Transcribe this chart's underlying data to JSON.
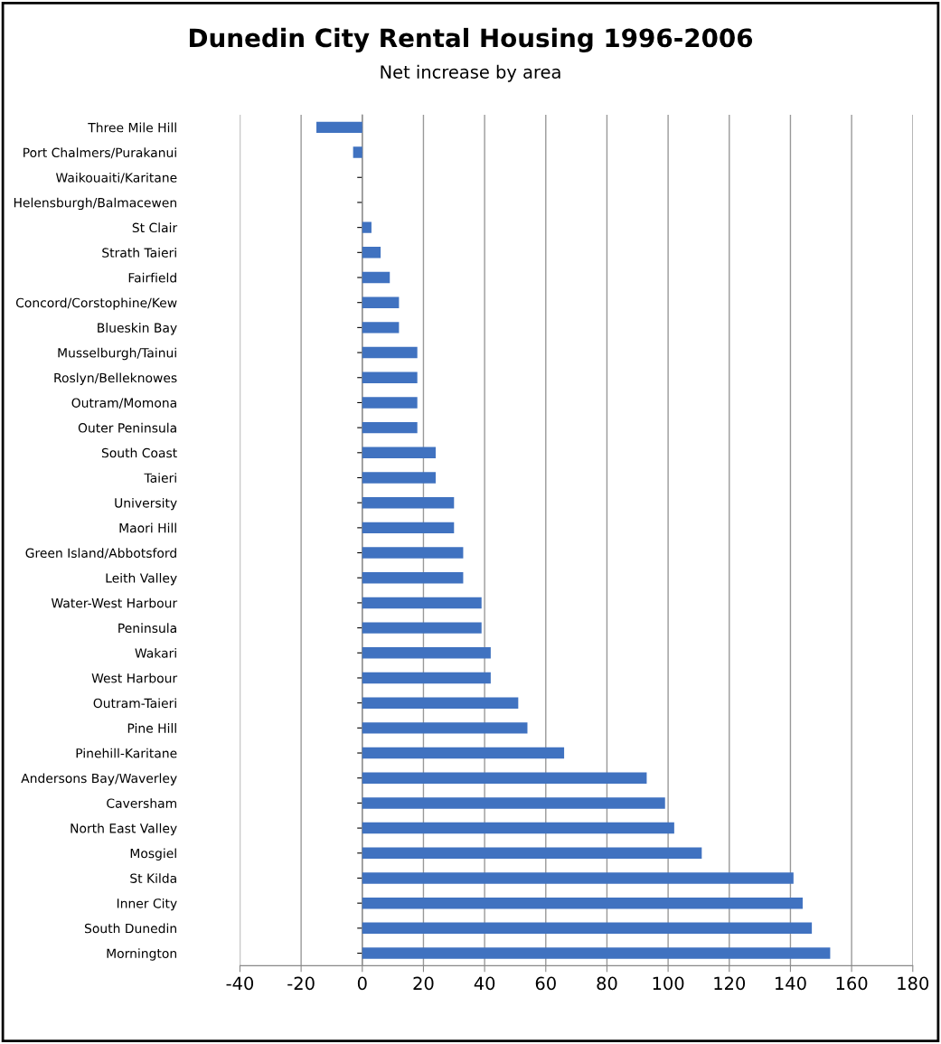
{
  "chart_data": {
    "type": "bar",
    "orientation": "horizontal",
    "title": "Dunedin City Rental Housing 1996-2006",
    "subtitle": "Net increase by area",
    "categories": [
      "Three Mile Hill",
      "Port Chalmers/Purakanui",
      "Waikouaiti/Karitane",
      "Helensburgh/Balmacewen",
      "St Clair",
      "Strath Taieri",
      "Fairfield",
      "Concord/Corstophine/Kew",
      "Blueskin Bay",
      "Musselburgh/Tainui",
      "Roslyn/Belleknowes",
      "Outram/Momona",
      "Outer Peninsula",
      "South Coast",
      "Taieri",
      "University",
      "Maori Hill",
      "Green Island/Abbotsford",
      "Leith Valley",
      "Water-West Harbour",
      "Peninsula",
      "Wakari",
      "West Harbour",
      "Outram-Taieri",
      "Pine Hill",
      "Pinehill-Karitane",
      "Andersons Bay/Waverley",
      "Caversham",
      "North East Valley",
      "Mosgiel",
      "St Kilda",
      "Inner City",
      "South Dunedin",
      "Mornington"
    ],
    "values": [
      -15,
      -3,
      0,
      0,
      3,
      6,
      9,
      12,
      12,
      18,
      18,
      18,
      18,
      24,
      24,
      30,
      30,
      33,
      33,
      39,
      39,
      42,
      42,
      51,
      54,
      66,
      93,
      99,
      102,
      111,
      141,
      144,
      147,
      153
    ],
    "color": "#4072c0",
    "xlim": [
      -40,
      180
    ],
    "xticks": [
      -40,
      -20,
      0,
      20,
      40,
      60,
      80,
      100,
      120,
      140,
      160,
      180
    ],
    "grid": "x"
  }
}
